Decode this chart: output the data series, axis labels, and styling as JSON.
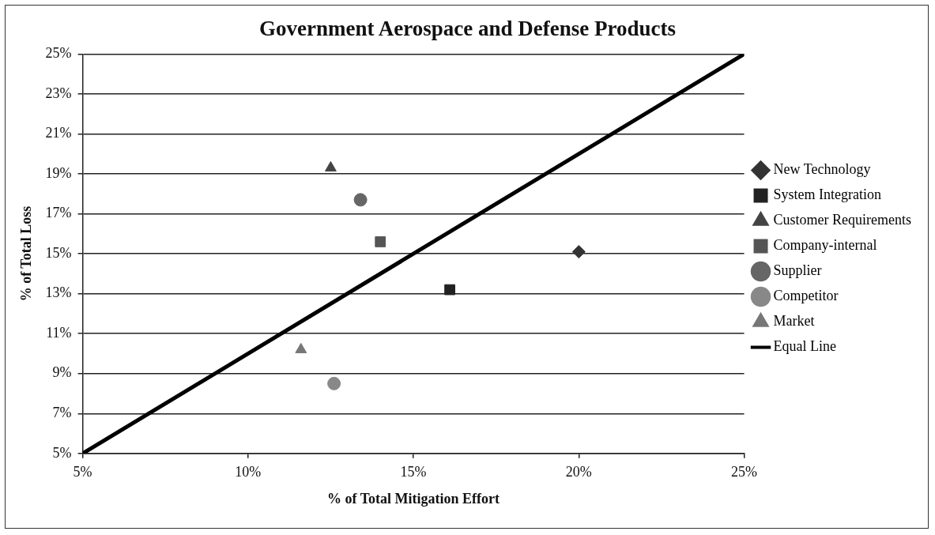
{
  "chart_data": {
    "type": "scatter",
    "title": "Government Aerospace and Defense Products",
    "xlabel": "% of Total Mitigation Effort",
    "ylabel": "% of Total Loss",
    "xlim": [
      5,
      25
    ],
    "xticks": [
      {
        "value": 5,
        "label": "5%"
      },
      {
        "value": 10,
        "label": "10%"
      },
      {
        "value": 15,
        "label": "15%"
      },
      {
        "value": 20,
        "label": "20%"
      },
      {
        "value": 25,
        "label": "25%"
      }
    ],
    "ylim": [
      5,
      25
    ],
    "yticks": [
      {
        "value": 5,
        "label": "5%"
      },
      {
        "value": 7,
        "label": "7%"
      },
      {
        "value": 9,
        "label": "9%"
      },
      {
        "value": 11,
        "label": "11%"
      },
      {
        "value": 13,
        "label": "13%"
      },
      {
        "value": 15,
        "label": "15%"
      },
      {
        "value": 17,
        "label": "17%"
      },
      {
        "value": 19,
        "label": "19%"
      },
      {
        "value": 21,
        "label": "21%"
      },
      {
        "value": 23,
        "label": "23%"
      },
      {
        "value": 25,
        "label": "25%"
      }
    ],
    "grid": "y",
    "legend": "right",
    "series": [
      {
        "name": "New Technology",
        "color": "#333333",
        "marker": "diamond",
        "x": [
          20.0
        ],
        "values": [
          15.1
        ]
      },
      {
        "name": "System Integration",
        "color": "#222222",
        "marker": "square",
        "x": [
          16.1
        ],
        "values": [
          13.2
        ]
      },
      {
        "name": "Customer Requirements",
        "color": "#444444",
        "marker": "triangle",
        "x": [
          12.5
        ],
        "values": [
          19.3
        ]
      },
      {
        "name": "Company-internal",
        "color": "#555555",
        "marker": "square",
        "x": [
          14.0
        ],
        "values": [
          15.6
        ]
      },
      {
        "name": "Supplier",
        "color": "#666666",
        "marker": "circle",
        "x": [
          13.4
        ],
        "values": [
          17.7
        ]
      },
      {
        "name": "Competitor",
        "color": "#888888",
        "marker": "circle",
        "x": [
          12.6
        ],
        "values": [
          8.5
        ]
      },
      {
        "name": "Market",
        "color": "#777777",
        "marker": "triangle",
        "x": [
          11.6
        ],
        "values": [
          10.2
        ]
      },
      {
        "name": "Equal Line",
        "color": "#000000",
        "type": "line",
        "marker": "none",
        "line_style": "solid",
        "x": [
          5,
          25
        ],
        "values": [
          5,
          25
        ]
      }
    ]
  }
}
